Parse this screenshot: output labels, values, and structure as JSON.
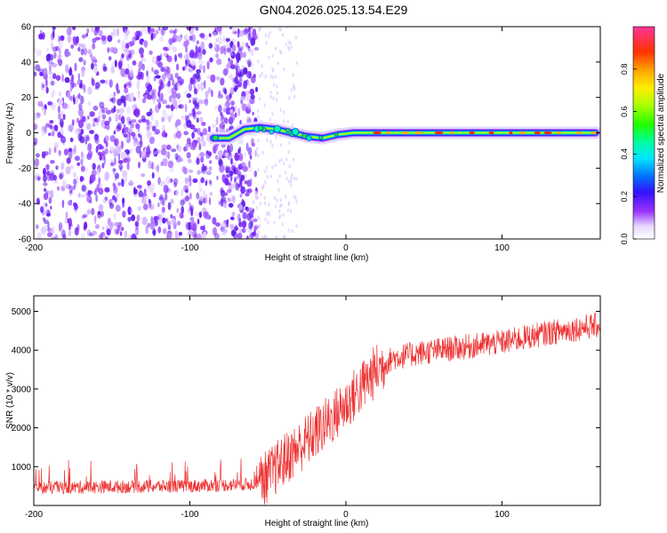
{
  "title": "GN04.2026.025.13.54.E29",
  "chart_data": [
    {
      "type": "heatmap",
      "xlabel": "Height of straight line (km)",
      "ylabel": "Frequency (Hz)",
      "xlim": [
        -200,
        163
      ],
      "ylim": [
        -60,
        60
      ],
      "xticks": [
        -200,
        -100,
        0,
        100
      ],
      "yticks": [
        -60,
        -40,
        -20,
        0,
        20,
        40,
        60
      ],
      "colorbar": {
        "label": "Normalized spectral amplitude",
        "range": [
          0,
          1
        ],
        "ticks": [
          "0.0",
          "0.2",
          "0.4",
          "0.6",
          "0.8"
        ]
      },
      "noise_region_x": [
        -200,
        -57
      ],
      "signal_trace": [
        {
          "x": -85,
          "y": -3
        },
        {
          "x": -75,
          "y": -3
        },
        {
          "x": -65,
          "y": 2
        },
        {
          "x": -55,
          "y": 3
        },
        {
          "x": -45,
          "y": 2
        },
        {
          "x": -35,
          "y": 0
        },
        {
          "x": -25,
          "y": -2
        },
        {
          "x": -15,
          "y": -3
        },
        {
          "x": -5,
          "y": -1
        },
        {
          "x": 5,
          "y": 0
        },
        {
          "x": 20,
          "y": 0
        },
        {
          "x": 160,
          "y": 0
        }
      ]
    },
    {
      "type": "line",
      "xlabel": "Height of straight line (km)",
      "ylabel": "SNR (10 * v/v)",
      "xlim": [
        -200,
        163
      ],
      "ylim": [
        0,
        5400
      ],
      "xticks": [
        -200,
        -100,
        0,
        100
      ],
      "yticks": [
        1000,
        2000,
        3000,
        4000,
        5000
      ],
      "color": "#ee3333",
      "series": [
        {
          "name": "SNR",
          "x": [
            -200,
            -150,
            -100,
            -60,
            -50,
            -40,
            -30,
            -20,
            -10,
            0,
            10,
            20,
            30,
            50,
            70,
            100,
            130,
            163
          ],
          "y": [
            450,
            480,
            500,
            550,
            750,
            1150,
            1500,
            1850,
            2200,
            2600,
            3050,
            3500,
            3800,
            3950,
            4050,
            4200,
            4450,
            4650
          ]
        }
      ]
    }
  ]
}
